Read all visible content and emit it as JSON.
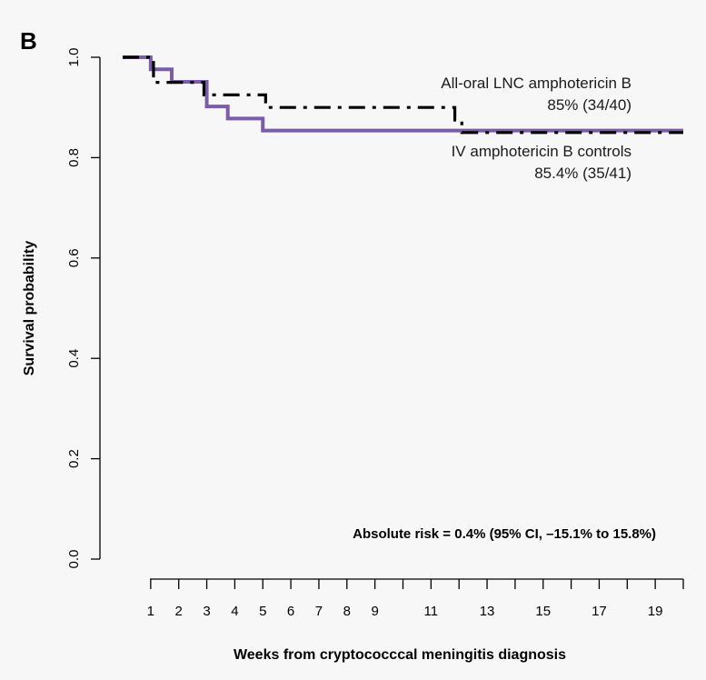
{
  "panel_label": "B",
  "chart_data": {
    "type": "line",
    "xlabel": "Weeks from cryptococccal meningitis diagnosis",
    "ylabel": "Survival probability",
    "xlim": [
      0,
      20
    ],
    "ylim": [
      0,
      1
    ],
    "x_ticks": [
      1,
      2,
      3,
      4,
      5,
      6,
      7,
      8,
      9,
      10,
      11,
      12,
      13,
      14,
      15,
      16,
      17,
      18,
      19,
      20
    ],
    "x_tick_labels": [
      "1",
      "2",
      "3",
      "4",
      "5",
      "6",
      "7",
      "8",
      "9",
      "",
      "11",
      "",
      "13",
      "",
      "15",
      "",
      "17",
      "",
      "19",
      ""
    ],
    "y_ticks": [
      0.0,
      0.2,
      0.4,
      0.6,
      0.8,
      1.0
    ],
    "y_tick_labels": [
      "0.0",
      "0.2",
      "0.4",
      "0.6",
      "0.8",
      "1.0"
    ],
    "grid": false,
    "series": [
      {
        "name": "All-oral LNC amphotericin B",
        "color": "#000000",
        "line_style": "dash-dot",
        "steps": [
          [
            0,
            1.0
          ],
          [
            0.35,
            1.0
          ],
          [
            1.1,
            0.95
          ],
          [
            1.9,
            0.95
          ],
          [
            2.9,
            0.925
          ],
          [
            3.9,
            0.925
          ],
          [
            5.1,
            0.9
          ],
          [
            11.5,
            0.9
          ],
          [
            11.85,
            0.875
          ],
          [
            12.1,
            0.85
          ],
          [
            20,
            0.85
          ]
        ],
        "annotation": [
          "All-oral LNC amphotericin B",
          "85% (34/40)"
        ]
      },
      {
        "name": "IV amphotericin B controls",
        "color": "#7a5ca8",
        "line_style": "solid",
        "steps": [
          [
            0,
            1.0
          ],
          [
            1.0,
            0.976
          ],
          [
            1.75,
            0.951
          ],
          [
            3.0,
            0.902
          ],
          [
            3.75,
            0.878
          ],
          [
            5.0,
            0.854
          ],
          [
            20,
            0.854
          ]
        ],
        "annotation": [
          "IV amphotericin B controls",
          "85.4% (35/41)"
        ]
      }
    ],
    "annotation_text": "Absolute risk = 0.4% (95% CI, –15.1% to 15.8%)"
  }
}
